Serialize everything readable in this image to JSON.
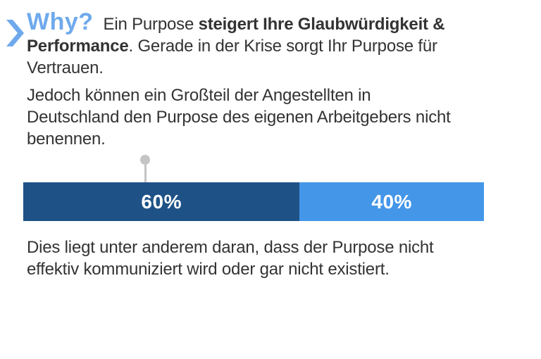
{
  "header": {
    "title": "Why?",
    "title_color": "#6FA9EC",
    "chevron_icon_color": "#6FA9EC"
  },
  "intro": {
    "seg1": "Ein Purpose ",
    "seg2_bold": "steigert Ihre Glaubwürdigkeit &\nPerformance",
    "seg3": ". Gerade in der Krise sorgt Ihr Purpose für\nVertrauen."
  },
  "paragraph2": {
    "text": "Jedoch können ein Großteil der Angestellten in\nDeutschland den Purpose des eigenen Arbeitgebers nicht\nbenennen."
  },
  "chart_data": {
    "type": "bar",
    "orientation": "horizontal",
    "stacked": true,
    "grid": false,
    "axes_visible": false,
    "segments": [
      {
        "label": "60%",
        "value": 60,
        "color": "#1E5287",
        "text_color": "#ffffff"
      },
      {
        "label": "40%",
        "value": 40,
        "color": "#4496E8",
        "text_color": "#ffffff"
      }
    ],
    "marker": {
      "shape": "pin",
      "color": "#C4C4C4",
      "position_pct": 26.5,
      "points_to": "60% segment"
    }
  },
  "paragraph3": {
    "text": "Dies liegt unter anderem daran, dass der Purpose nicht\neffektiv kommuniziert wird oder gar nicht existiert."
  },
  "colors": {
    "background": "#ffffff",
    "body_text": "#333333",
    "accent_blue_light": "#6FA9EC",
    "bar_dark_blue": "#1E5287",
    "bar_light_blue": "#4496E8",
    "pin_gray": "#C4C4C4"
  }
}
